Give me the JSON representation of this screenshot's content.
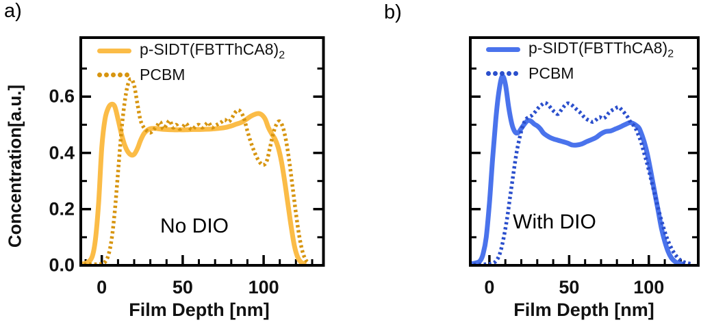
{
  "chart_data": [
    {
      "id": "a",
      "type": "line",
      "panel_label": "a)",
      "annotation": "No DIO",
      "xlabel": "Film Depth [nm]",
      "ylabel": "Concentration[a.u.]",
      "xlim": [
        -13,
        137
      ],
      "ylim": [
        0,
        0.81
      ],
      "grid": false,
      "legend_position": "top-left",
      "xticks": {
        "major": [
          0,
          50,
          100
        ],
        "labels": [
          "0",
          "50",
          "100"
        ],
        "minor_step": 10
      },
      "yticks": {
        "major": [
          0,
          0.2,
          0.4,
          0.6
        ],
        "labels": [
          "0.0",
          "0.2",
          "0.4",
          "0.6"
        ],
        "minor_step": 0.1
      },
      "legend": [
        {
          "label_base": "p-SIDT(FBTThCA8)",
          "label_sub": "2",
          "line": "solid",
          "color": "#FBBC47"
        },
        {
          "label_base": "PCBM",
          "label_sub": "",
          "line": "dotted",
          "color": "#D79510"
        }
      ],
      "series": [
        {
          "name": "p-SIDT(FBTThCA8)2",
          "style": "solid",
          "color": "#FBBC47",
          "points": [
            [
              -12,
              0.005
            ],
            [
              -9,
              0.01
            ],
            [
              -6,
              0.03
            ],
            [
              -4,
              0.09
            ],
            [
              -2,
              0.22
            ],
            [
              0,
              0.42
            ],
            [
              2,
              0.52
            ],
            [
              4,
              0.56
            ],
            [
              6,
              0.573
            ],
            [
              8,
              0.565
            ],
            [
              10,
              0.52
            ],
            [
              12,
              0.47
            ],
            [
              14,
              0.43
            ],
            [
              16,
              0.405
            ],
            [
              18,
              0.393
            ],
            [
              20,
              0.395
            ],
            [
              22,
              0.415
            ],
            [
              24,
              0.445
            ],
            [
              26,
              0.468
            ],
            [
              28,
              0.48
            ],
            [
              30,
              0.486
            ],
            [
              33,
              0.487
            ],
            [
              36,
              0.485
            ],
            [
              40,
              0.483
            ],
            [
              44,
              0.482
            ],
            [
              48,
              0.482
            ],
            [
              52,
              0.482
            ],
            [
              56,
              0.483
            ],
            [
              60,
              0.483
            ],
            [
              64,
              0.484
            ],
            [
              68,
              0.485
            ],
            [
              72,
              0.487
            ],
            [
              76,
              0.49
            ],
            [
              80,
              0.496
            ],
            [
              83,
              0.502
            ],
            [
              86,
              0.508
            ],
            [
              89,
              0.518
            ],
            [
              92,
              0.53
            ],
            [
              95,
              0.538
            ],
            [
              97,
              0.54
            ],
            [
              99,
              0.535
            ],
            [
              101,
              0.52
            ],
            [
              103,
              0.49
            ],
            [
              105,
              0.468
            ],
            [
              107,
              0.45
            ],
            [
              109,
              0.42
            ],
            [
              111,
              0.37
            ],
            [
              113,
              0.3
            ],
            [
              115,
              0.22
            ],
            [
              117,
              0.14
            ],
            [
              119,
              0.07
            ],
            [
              121,
              0.03
            ],
            [
              123,
              0.012
            ],
            [
              125,
              0.006
            ]
          ]
        },
        {
          "name": "PCBM",
          "style": "dotted",
          "color": "#D79510",
          "points": [
            [
              -11,
              0.004
            ],
            [
              -6,
              0.004
            ],
            [
              -2,
              0.004
            ],
            [
              0,
              0.006
            ],
            [
              2,
              0.012
            ],
            [
              4,
              0.035
            ],
            [
              6,
              0.09
            ],
            [
              8,
              0.19
            ],
            [
              10,
              0.33
            ],
            [
              12,
              0.47
            ],
            [
              14,
              0.575
            ],
            [
              16,
              0.64
            ],
            [
              18,
              0.663
            ],
            [
              20,
              0.64
            ],
            [
              22,
              0.575
            ],
            [
              24,
              0.515
            ],
            [
              26,
              0.49
            ],
            [
              28,
              0.478
            ],
            [
              30,
              0.472
            ],
            [
              32,
              0.482
            ],
            [
              34,
              0.495
            ],
            [
              36,
              0.51
            ],
            [
              38,
              0.485
            ],
            [
              40,
              0.5
            ],
            [
              42,
              0.515
            ],
            [
              44,
              0.49
            ],
            [
              46,
              0.5
            ],
            [
              48,
              0.485
            ],
            [
              50,
              0.492
            ],
            [
              52,
              0.505
            ],
            [
              54,
              0.49
            ],
            [
              56,
              0.483
            ],
            [
              58,
              0.495
            ],
            [
              60,
              0.5
            ],
            [
              62,
              0.49
            ],
            [
              64,
              0.5
            ],
            [
              66,
              0.508
            ],
            [
              68,
              0.49
            ],
            [
              70,
              0.497
            ],
            [
              72,
              0.503
            ],
            [
              74,
              0.51
            ],
            [
              76,
              0.518
            ],
            [
              78,
              0.51
            ],
            [
              80,
              0.52
            ],
            [
              82,
              0.54
            ],
            [
              84,
              0.552
            ],
            [
              86,
              0.545
            ],
            [
              88,
              0.52
            ],
            [
              90,
              0.478
            ],
            [
              92,
              0.44
            ],
            [
              94,
              0.408
            ],
            [
              96,
              0.382
            ],
            [
              98,
              0.364
            ],
            [
              100,
              0.357
            ],
            [
              102,
              0.372
            ],
            [
              104,
              0.42
            ],
            [
              106,
              0.47
            ],
            [
              108,
              0.502
            ],
            [
              110,
              0.512
            ],
            [
              112,
              0.49
            ],
            [
              114,
              0.44
            ],
            [
              116,
              0.365
            ],
            [
              118,
              0.275
            ],
            [
              120,
              0.185
            ],
            [
              122,
              0.105
            ],
            [
              124,
              0.05
            ],
            [
              126,
              0.02
            ],
            [
              128,
              0.008
            ]
          ]
        }
      ]
    },
    {
      "id": "b",
      "type": "line",
      "panel_label": "b)",
      "annotation": "With DIO",
      "xlabel": "Film Depth [nm]",
      "ylabel": "",
      "xlim": [
        -12,
        131
      ],
      "ylim": [
        0,
        0.81
      ],
      "grid": false,
      "legend_position": "top-left",
      "xticks": {
        "major": [
          0,
          50,
          100
        ],
        "labels": [
          "0",
          "50",
          "100"
        ],
        "minor_step": 10
      },
      "yticks": {
        "major": [
          0,
          0.2,
          0.4,
          0.6
        ],
        "labels": [],
        "minor_step": 0.1
      },
      "legend": [
        {
          "label_base": "p-SIDT(FBTThCA8)",
          "label_sub": "2",
          "line": "solid",
          "color": "#4A73EC"
        },
        {
          "label_base": "PCBM",
          "label_sub": "",
          "line": "dotted",
          "color": "#2B4FCC"
        }
      ],
      "series": [
        {
          "name": "p-SIDT(FBTThCA8)2",
          "style": "solid",
          "color": "#4A73EC",
          "points": [
            [
              -12,
              0.005
            ],
            [
              -9,
              0.008
            ],
            [
              -6,
              0.015
            ],
            [
              -4,
              0.04
            ],
            [
              -2,
              0.1
            ],
            [
              0,
              0.22
            ],
            [
              2,
              0.38
            ],
            [
              4,
              0.52
            ],
            [
              6,
              0.62
            ],
            [
              8,
              0.672
            ],
            [
              10,
              0.645
            ],
            [
              12,
              0.565
            ],
            [
              14,
              0.505
            ],
            [
              16,
              0.475
            ],
            [
              18,
              0.472
            ],
            [
              20,
              0.487
            ],
            [
              22,
              0.503
            ],
            [
              24,
              0.515
            ],
            [
              26,
              0.513
            ],
            [
              28,
              0.503
            ],
            [
              30,
              0.496
            ],
            [
              32,
              0.485
            ],
            [
              34,
              0.47
            ],
            [
              37,
              0.458
            ],
            [
              40,
              0.45
            ],
            [
              43,
              0.445
            ],
            [
              46,
              0.44
            ],
            [
              49,
              0.435
            ],
            [
              52,
              0.428
            ],
            [
              55,
              0.428
            ],
            [
              58,
              0.432
            ],
            [
              61,
              0.44
            ],
            [
              64,
              0.447
            ],
            [
              67,
              0.455
            ],
            [
              70,
              0.468
            ],
            [
              73,
              0.476
            ],
            [
              76,
              0.478
            ],
            [
              79,
              0.485
            ],
            [
              82,
              0.492
            ],
            [
              84,
              0.498
            ],
            [
              86,
              0.503
            ],
            [
              88,
              0.508
            ],
            [
              90,
              0.505
            ],
            [
              92,
              0.498
            ],
            [
              94,
              0.487
            ],
            [
              96,
              0.458
            ],
            [
              98,
              0.42
            ],
            [
              100,
              0.37
            ],
            [
              102,
              0.31
            ],
            [
              104,
              0.25
            ],
            [
              106,
              0.19
            ],
            [
              108,
              0.13
            ],
            [
              110,
              0.085
            ],
            [
              112,
              0.05
            ],
            [
              114,
              0.028
            ],
            [
              116,
              0.015
            ],
            [
              118,
              0.008
            ],
            [
              121,
              0.005
            ]
          ]
        },
        {
          "name": "PCBM",
          "style": "dotted",
          "color": "#2B4FCC",
          "points": [
            [
              -10,
              0.003
            ],
            [
              -5,
              0.003
            ],
            [
              0,
              0.005
            ],
            [
              3,
              0.01
            ],
            [
              5,
              0.022
            ],
            [
              7,
              0.05
            ],
            [
              9,
              0.1
            ],
            [
              11,
              0.165
            ],
            [
              13,
              0.245
            ],
            [
              15,
              0.325
            ],
            [
              17,
              0.4
            ],
            [
              19,
              0.455
            ],
            [
              21,
              0.497
            ],
            [
              23,
              0.52
            ],
            [
              25,
              0.528
            ],
            [
              27,
              0.535
            ],
            [
              29,
              0.548
            ],
            [
              31,
              0.562
            ],
            [
              33,
              0.572
            ],
            [
              35,
              0.578
            ],
            [
              37,
              0.57
            ],
            [
              39,
              0.556
            ],
            [
              41,
              0.545
            ],
            [
              43,
              0.538
            ],
            [
              45,
              0.552
            ],
            [
              47,
              0.567
            ],
            [
              49,
              0.576
            ],
            [
              51,
              0.573
            ],
            [
              53,
              0.563
            ],
            [
              55,
              0.553
            ],
            [
              57,
              0.543
            ],
            [
              59,
              0.53
            ],
            [
              61,
              0.52
            ],
            [
              63,
              0.514
            ],
            [
              65,
              0.51
            ],
            [
              67,
              0.518
            ],
            [
              69,
              0.527
            ],
            [
              71,
              0.522
            ],
            [
              73,
              0.528
            ],
            [
              75,
              0.543
            ],
            [
              77,
              0.552
            ],
            [
              79,
              0.558
            ],
            [
              81,
              0.563
            ],
            [
              83,
              0.553
            ],
            [
              85,
              0.54
            ],
            [
              87,
              0.525
            ],
            [
              89,
              0.505
            ],
            [
              91,
              0.494
            ],
            [
              93,
              0.47
            ],
            [
              95,
              0.44
            ],
            [
              97,
              0.4
            ],
            [
              99,
              0.36
            ],
            [
              101,
              0.315
            ],
            [
              103,
              0.268
            ],
            [
              105,
              0.222
            ],
            [
              107,
              0.178
            ],
            [
              109,
              0.138
            ],
            [
              111,
              0.103
            ],
            [
              113,
              0.075
            ],
            [
              115,
              0.052
            ],
            [
              117,
              0.035
            ],
            [
              119,
              0.022
            ],
            [
              121,
              0.014
            ],
            [
              124,
              0.008
            ],
            [
              127,
              0.005
            ]
          ]
        }
      ]
    }
  ]
}
